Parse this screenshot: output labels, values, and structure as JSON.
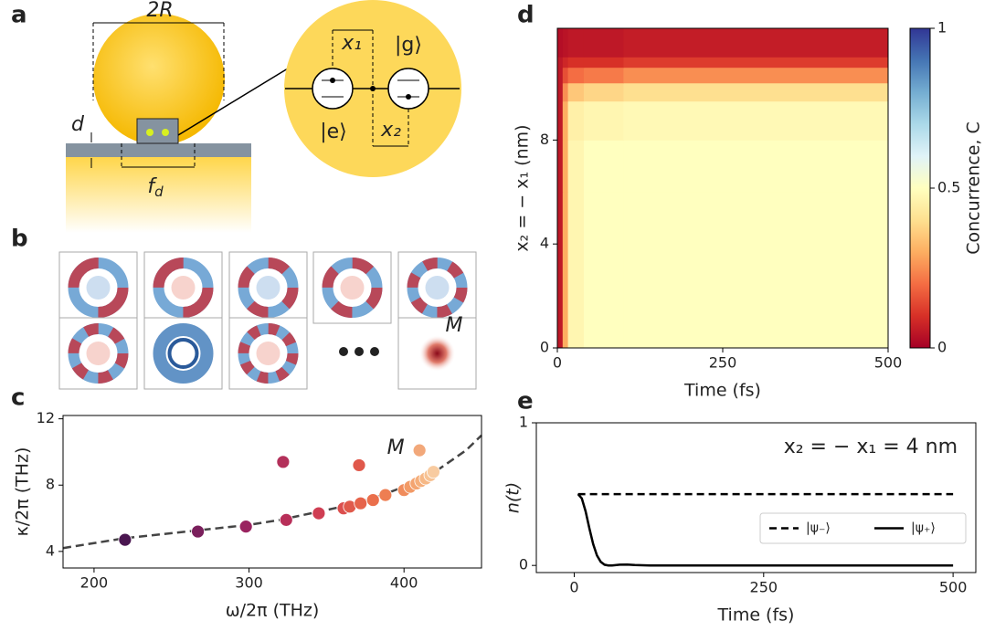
{
  "panel_labels": [
    "a",
    "b",
    "c",
    "d",
    "e"
  ],
  "diagram": {
    "sphere_diameter": "2R",
    "gap": "d",
    "facet": "f",
    "facet_sub": "d",
    "x1": "x₁",
    "ground": "|g⟩",
    "excited": "|e⟩",
    "x2": "x₂",
    "mode_label": "M"
  },
  "chart_data": [
    {
      "type": "scatter",
      "xlabel": "ω/2π   (THz)",
      "ylabel": "κ/2π   (THz)",
      "annotation": "M",
      "x": [
        220,
        267,
        298,
        322,
        324,
        345,
        361,
        365,
        371,
        372,
        380,
        388,
        400,
        404,
        408,
        410,
        411,
        414,
        417,
        419
      ],
      "values": [
        4.7,
        5.2,
        5.5,
        9.4,
        5.9,
        6.3,
        6.6,
        6.7,
        9.2,
        6.9,
        7.1,
        7.4,
        7.7,
        7.9,
        8.1,
        10.1,
        8.25,
        8.4,
        8.6,
        8.8
      ],
      "colors": [
        "#4a1650",
        "#7a1f5c",
        "#9a2360",
        "#b3305a",
        "#b82f59",
        "#cf3e53",
        "#dc4f4e",
        "#e05a4b",
        "#e0584b",
        "#e6634a",
        "#ea6f4c",
        "#ee7e52",
        "#f08c5c",
        "#f29a66",
        "#f4a470",
        "#f2a87a",
        "#f5ae7a",
        "#f6b886",
        "#f7c293",
        "#f8cba0"
      ],
      "fit_x": [
        180,
        200,
        220,
        250,
        280,
        300,
        320,
        340,
        360,
        380,
        400,
        420,
        440,
        450
      ],
      "fit_values": [
        4.2,
        4.5,
        4.8,
        5.1,
        5.4,
        5.6,
        5.9,
        6.3,
        6.7,
        7.2,
        7.9,
        8.8,
        10.1,
        11.0
      ],
      "fit_color": "#444444",
      "xlim": [
        180,
        450
      ],
      "ylim": [
        3,
        12.2
      ],
      "xticks": [
        200,
        300,
        400
      ],
      "yticks": [
        4,
        8,
        12
      ]
    },
    {
      "type": "heatmap",
      "xlabel": "Time (fs)",
      "ylabel": "x₂ = − x₁ (nm)",
      "colormap": "RdYlBu",
      "x_edges": [
        0,
        8,
        16,
        40,
        100,
        500
      ],
      "y_edges": [
        0,
        6,
        8,
        9.5,
        10.2,
        10.8,
        11.2,
        12.3
      ],
      "z": [
        [
          0.05,
          0.3,
          0.47,
          0.5,
          0.5
        ],
        [
          0.05,
          0.3,
          0.47,
          0.5,
          0.5
        ],
        [
          0.05,
          0.3,
          0.45,
          0.47,
          0.48
        ],
        [
          0.05,
          0.25,
          0.35,
          0.38,
          0.4
        ],
        [
          0.05,
          0.15,
          0.2,
          0.22,
          0.25
        ],
        [
          0.05,
          0.08,
          0.1,
          0.1,
          0.12
        ],
        [
          0.03,
          0.04,
          0.05,
          0.05,
          0.06
        ]
      ],
      "xlim": [
        0,
        500
      ],
      "ylim": [
        0,
        12.3
      ],
      "xticks": [
        0,
        250,
        500
      ],
      "yticks": [
        0,
        4,
        8
      ],
      "colorbar": {
        "label": "Concurrence, C",
        "lim": [
          0,
          1
        ],
        "ticks": [
          0,
          0.5,
          1
        ]
      }
    },
    {
      "type": "line",
      "xlabel": "Time (fs)",
      "ylabel": "n(t)",
      "annotation": "x₂ = − x₁ = 4 nm",
      "legend": "center right",
      "series": [
        {
          "name": "|ψ₋⟩",
          "color": "#000000",
          "style": "dashed",
          "x": [
            5,
            500
          ],
          "values": [
            0.5,
            0.5
          ]
        },
        {
          "name": "|ψ₊⟩",
          "color": "#000000",
          "style": "solid",
          "x": [
            5,
            10,
            15,
            20,
            25,
            30,
            35,
            40,
            45,
            50,
            60,
            70,
            80,
            100,
            200,
            300,
            400,
            500
          ],
          "values": [
            0.5,
            0.47,
            0.38,
            0.26,
            0.15,
            0.07,
            0.025,
            0.005,
            0,
            0,
            0.005,
            0.006,
            0.003,
            0,
            0,
            0,
            0,
            0
          ]
        }
      ],
      "xlim": [
        -50,
        530
      ],
      "ylim": [
        -0.05,
        1
      ],
      "xticks": [
        0,
        250,
        500
      ],
      "yticks": [
        0,
        1
      ]
    }
  ]
}
